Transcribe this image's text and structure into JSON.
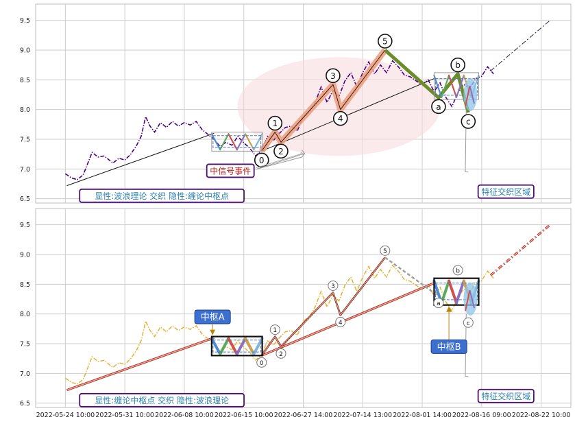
{
  "chart_data": [
    {
      "type": "line",
      "panel": "top",
      "ylim": [
        6.45,
        9.75
      ],
      "y_ticks": [
        "6.5",
        "7.0",
        "7.5",
        "8.0",
        "8.5",
        "9.0",
        "9.5"
      ],
      "grid": true,
      "price_series": {
        "style": "dash-dot",
        "color": "#4b0082",
        "points": [
          [
            1.0,
            6.92
          ],
          [
            1.2,
            6.85
          ],
          [
            1.4,
            6.82
          ],
          [
            1.6,
            6.9
          ],
          [
            1.9,
            7.28
          ],
          [
            2.1,
            7.2
          ],
          [
            2.3,
            7.22
          ],
          [
            2.6,
            7.1
          ],
          [
            2.8,
            7.18
          ],
          [
            3.0,
            7.15
          ],
          [
            3.2,
            7.25
          ],
          [
            3.4,
            7.4
          ],
          [
            3.55,
            7.55
          ],
          [
            3.7,
            7.88
          ],
          [
            3.85,
            7.72
          ],
          [
            4.0,
            7.62
          ],
          [
            4.2,
            7.78
          ],
          [
            4.4,
            7.7
          ],
          [
            4.6,
            7.8
          ],
          [
            4.8,
            7.72
          ],
          [
            5.0,
            7.78
          ],
          [
            5.2,
            7.74
          ],
          [
            5.4,
            7.8
          ],
          [
            5.6,
            7.66
          ],
          [
            5.8,
            7.58
          ],
          [
            6.0,
            7.5
          ],
          [
            6.2,
            7.38
          ],
          [
            6.4,
            7.45
          ],
          [
            6.6,
            7.4
          ],
          [
            6.8,
            7.55
          ],
          [
            7.0,
            7.44
          ],
          [
            7.2,
            7.35
          ],
          [
            7.4,
            7.22
          ],
          [
            7.6,
            7.32
          ],
          [
            7.8,
            7.55
          ],
          [
            8.0,
            7.48
          ],
          [
            8.2,
            7.6
          ],
          [
            8.4,
            7.7
          ],
          [
            8.6,
            7.72
          ],
          [
            8.8,
            7.64
          ],
          [
            9.0,
            7.88
          ],
          [
            9.2,
            7.95
          ],
          [
            9.4,
            8.12
          ],
          [
            9.6,
            8.38
          ],
          [
            9.8,
            8.12
          ],
          [
            10.0,
            8.32
          ],
          [
            10.2,
            8.22
          ],
          [
            10.4,
            8.48
          ],
          [
            10.6,
            8.62
          ],
          [
            10.8,
            8.38
          ],
          [
            11.0,
            8.62
          ],
          [
            11.2,
            8.8
          ],
          [
            11.4,
            8.6
          ],
          [
            11.6,
            8.75
          ],
          [
            11.8,
            8.62
          ],
          [
            12.0,
            8.82
          ],
          [
            12.2,
            8.72
          ],
          [
            12.4,
            8.58
          ],
          [
            12.6,
            8.55
          ],
          [
            12.8,
            8.48
          ],
          [
            13.0,
            8.42
          ],
          [
            13.2,
            8.5
          ],
          [
            13.4,
            8.3
          ],
          [
            13.6,
            8.45
          ],
          [
            13.8,
            8.2
          ],
          [
            14.0,
            8.05
          ],
          [
            14.2,
            8.28
          ],
          [
            14.4,
            8.42
          ],
          [
            14.6,
            8.36
          ],
          [
            14.8,
            8.52
          ],
          [
            15.0,
            8.56
          ],
          [
            15.2,
            8.72
          ],
          [
            15.4,
            8.6
          ]
        ]
      },
      "centers": [
        {
          "x": [
            5.92,
            7.62
          ],
          "y": [
            7.3,
            7.62
          ],
          "inner": [
            7.36,
            7.56
          ]
        },
        {
          "x": [
            13.4,
            14.9
          ],
          "y": [
            8.17,
            8.62
          ],
          "inner": [
            8.24,
            8.52
          ]
        }
      ],
      "trend_lines": [
        {
          "from": [
            1.05,
            6.72
          ],
          "to": [
            6.0,
            7.6
          ]
        },
        {
          "from": [
            7.6,
            7.3
          ],
          "to": [
            13.4,
            8.52
          ]
        },
        {
          "from": [
            15.3,
            8.65
          ],
          "to": [
            17.3,
            9.5
          ],
          "style": "dash-dot"
        }
      ],
      "wave_points": [
        {
          "label": "0",
          "x": 7.6,
          "y": 7.3
        },
        {
          "label": "1",
          "x": 8.05,
          "y": 7.62
        },
        {
          "label": "2",
          "x": 8.25,
          "y": 7.45
        },
        {
          "label": "3",
          "x": 10.0,
          "y": 8.42
        },
        {
          "label": "4",
          "x": 10.25,
          "y": 8.0
        },
        {
          "label": "5",
          "x": 11.75,
          "y": 9.0
        },
        {
          "label": "a",
          "x": 13.55,
          "y": 8.2
        },
        {
          "label": "b",
          "x": 14.2,
          "y": 8.6
        },
        {
          "label": "c",
          "x": 14.55,
          "y": 7.95
        }
      ],
      "annotations": [
        {
          "text": "中信号事件",
          "x": 6.55,
          "y": 6.97,
          "style": "red-text"
        },
        {
          "text": "显性:波浪理论 交织 隐性:缠论中枢点",
          "x": 1.55,
          "y": 6.55,
          "style": "teal-text"
        },
        {
          "text": "特征交织区域",
          "x": 14.95,
          "y": 6.62,
          "style": "teal-text"
        }
      ]
    },
    {
      "type": "line",
      "panel": "bottom",
      "ylim": [
        6.45,
        9.75
      ],
      "y_ticks": [
        "6.5",
        "7.0",
        "7.5",
        "8.0",
        "8.5",
        "9.0",
        "9.5"
      ],
      "grid": true,
      "x_ticks": [
        "2022-05-24 10:00",
        "2022-05-31 10:00",
        "2022-06-08 10:00",
        "2022-06-15 10:00",
        "2022-06-27 14:00",
        "2022-07-14 13:00",
        "2022-08-01 14:00",
        "2022-08-16 09:00",
        "2022-08-22 10:00"
      ],
      "price_series": {
        "style": "dash-dot",
        "color": "#e8b030",
        "points": [
          [
            1.0,
            6.92
          ],
          [
            1.2,
            6.85
          ],
          [
            1.4,
            6.82
          ],
          [
            1.6,
            6.9
          ],
          [
            1.9,
            7.28
          ],
          [
            2.1,
            7.2
          ],
          [
            2.3,
            7.22
          ],
          [
            2.6,
            7.1
          ],
          [
            2.8,
            7.18
          ],
          [
            3.0,
            7.15
          ],
          [
            3.2,
            7.25
          ],
          [
            3.4,
            7.4
          ],
          [
            3.55,
            7.55
          ],
          [
            3.7,
            7.88
          ],
          [
            3.85,
            7.72
          ],
          [
            4.0,
            7.62
          ],
          [
            4.2,
            7.78
          ],
          [
            4.4,
            7.7
          ],
          [
            4.6,
            7.8
          ],
          [
            4.8,
            7.72
          ],
          [
            5.0,
            7.78
          ],
          [
            5.2,
            7.74
          ],
          [
            5.4,
            7.8
          ],
          [
            5.6,
            7.66
          ],
          [
            5.8,
            7.58
          ],
          [
            6.0,
            7.5
          ],
          [
            6.2,
            7.38
          ],
          [
            6.4,
            7.45
          ],
          [
            6.6,
            7.4
          ],
          [
            6.8,
            7.55
          ],
          [
            7.0,
            7.44
          ],
          [
            7.2,
            7.35
          ],
          [
            7.4,
            7.22
          ],
          [
            7.6,
            7.32
          ],
          [
            7.8,
            7.55
          ],
          [
            8.0,
            7.48
          ],
          [
            8.2,
            7.6
          ],
          [
            8.4,
            7.7
          ],
          [
            8.6,
            7.72
          ],
          [
            8.8,
            7.64
          ],
          [
            9.0,
            7.88
          ],
          [
            9.2,
            7.95
          ],
          [
            9.4,
            8.12
          ],
          [
            9.6,
            8.38
          ],
          [
            9.8,
            8.12
          ],
          [
            10.0,
            8.32
          ],
          [
            10.2,
            8.22
          ],
          [
            10.4,
            8.48
          ],
          [
            10.6,
            8.62
          ],
          [
            10.8,
            8.38
          ],
          [
            11.0,
            8.62
          ],
          [
            11.2,
            8.8
          ],
          [
            11.4,
            8.6
          ],
          [
            11.6,
            8.75
          ],
          [
            11.8,
            8.62
          ],
          [
            12.0,
            8.82
          ],
          [
            12.2,
            8.72
          ],
          [
            12.4,
            8.58
          ],
          [
            12.6,
            8.55
          ],
          [
            12.8,
            8.48
          ],
          [
            13.0,
            8.42
          ],
          [
            13.2,
            8.5
          ],
          [
            13.4,
            8.3
          ],
          [
            13.6,
            8.45
          ],
          [
            13.8,
            8.2
          ],
          [
            14.0,
            8.05
          ],
          [
            14.2,
            8.28
          ],
          [
            14.4,
            8.42
          ],
          [
            14.6,
            8.36
          ],
          [
            14.8,
            8.52
          ],
          [
            15.0,
            8.56
          ],
          [
            15.2,
            8.72
          ],
          [
            15.4,
            8.6
          ]
        ]
      },
      "centers": [
        {
          "label": "中枢A",
          "x": [
            5.92,
            7.62
          ],
          "y": [
            7.3,
            7.62
          ],
          "inner": [
            7.36,
            7.56
          ],
          "callout": [
            5.95,
            7.95
          ]
        },
        {
          "label": "中枢B",
          "x": [
            13.4,
            14.9
          ],
          "y": [
            8.15,
            8.6
          ],
          "inner": [
            8.24,
            8.52
          ],
          "callout": [
            13.9,
            7.45
          ]
        }
      ],
      "trend_lines": [
        {
          "from": [
            1.05,
            6.72
          ],
          "to": [
            6.0,
            7.6
          ]
        },
        {
          "from": [
            7.6,
            7.3
          ],
          "to": [
            13.4,
            8.52
          ]
        },
        {
          "from": [
            15.3,
            8.65
          ],
          "to": [
            17.3,
            9.5
          ],
          "style": "dash-dot"
        }
      ],
      "wave_points": [
        {
          "label": "0",
          "x": 7.6,
          "y": 7.3
        },
        {
          "label": "1",
          "x": 8.05,
          "y": 7.62
        },
        {
          "label": "2",
          "x": 8.25,
          "y": 7.45
        },
        {
          "label": "3",
          "x": 10.0,
          "y": 8.36
        },
        {
          "label": "4",
          "x": 10.25,
          "y": 7.98
        },
        {
          "label": "5",
          "x": 11.75,
          "y": 8.95
        },
        {
          "label": "a",
          "x": 13.55,
          "y": 8.3
        },
        {
          "label": "b",
          "x": 14.2,
          "y": 8.62
        },
        {
          "label": "c",
          "x": 14.55,
          "y": 7.97
        }
      ],
      "annotations": [
        {
          "text": "显性:缠论中枢点 交织 隐性:波浪理论",
          "x": 1.55,
          "y": 6.55,
          "style": "teal-text"
        },
        {
          "text": "特征交织区域",
          "x": 14.95,
          "y": 6.62,
          "style": "teal-text"
        }
      ]
    }
  ]
}
